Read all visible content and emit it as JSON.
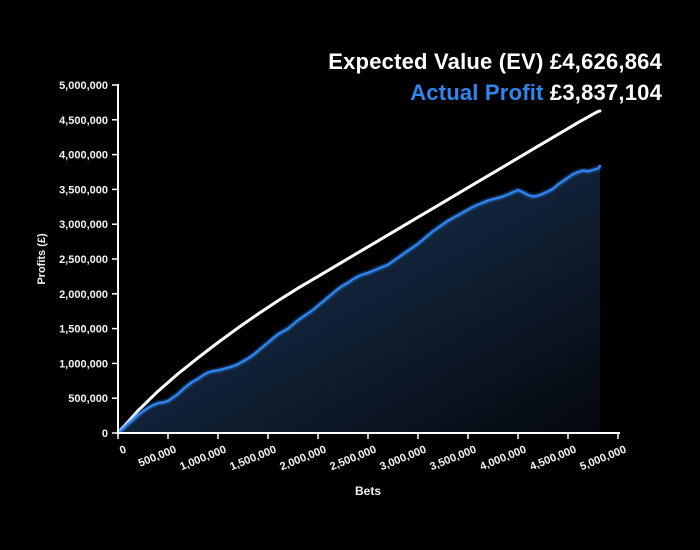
{
  "header": {
    "ev_label": "Expected Value (EV)",
    "ev_value": "£4,626,864",
    "actual_label": "Actual Profit",
    "actual_value": "£3,837,104"
  },
  "axes": {
    "x_label": "Bets",
    "y_label": "Profits (£)",
    "x_tick_values": [
      0,
      500000,
      1000000,
      1500000,
      2000000,
      2500000,
      3000000,
      3500000,
      4000000,
      4500000,
      5000000
    ],
    "x_tick_labels": [
      "0",
      "500,000",
      "1,000,000",
      "1,500,000",
      "2,000,000",
      "2,500,000",
      "3,000,000",
      "3,500,000",
      "4,000,000",
      "4,500,000",
      "5,000,000"
    ],
    "y_tick_values": [
      0,
      500000,
      1000000,
      1500000,
      2000000,
      2500000,
      3000000,
      3500000,
      4000000,
      4500000,
      5000000
    ],
    "y_tick_labels": [
      "0",
      "500,000",
      "1,000,000",
      "1,500,000",
      "2,000,000",
      "2,500,000",
      "3,000,000",
      "3,500,000",
      "4,000,000",
      "4,500,000",
      "5,000,000"
    ]
  },
  "colors": {
    "background": "#000000",
    "axis": "#ffffff",
    "ev_line": "#ffffff",
    "actual_line": "#2e86f0",
    "actual_glow": "rgba(46,134,240,0.28)",
    "fill_top": "#2d4f78",
    "fill_mid": "#12243a",
    "fill_bottom": "#05080e",
    "title_white": "#ffffff",
    "title_blue": "#2e86f0"
  },
  "chart_data": {
    "type": "line",
    "title": "Expected Value (EV) £4,626,864 | Actual Profit £3,837,104",
    "xlabel": "Bets",
    "ylabel": "Profits (£)",
    "xlim": [
      0,
      5000000
    ],
    "ylim": [
      0,
      5000000
    ],
    "grid": false,
    "legend_position": "top-right",
    "x_start": 0,
    "series": [
      {
        "name": "Expected Value (EV)",
        "color": "#ffffff",
        "final_value": 4626864,
        "x_step": 200000,
        "final": [
          4820000,
          4626864
        ],
        "y": [
          0,
          320000,
          600000,
          850000,
          1080000,
          1300000,
          1510000,
          1710000,
          1900000,
          2080000,
          2250000,
          2420000,
          2590000,
          2760000,
          2930000,
          3100000,
          3270000,
          3440000,
          3610000,
          3780000,
          3950000,
          4120000,
          4290000,
          4460000,
          4620000
        ]
      },
      {
        "name": "Actual Profit",
        "color": "#2e86f0",
        "final_value": 3837104,
        "area_fill": true,
        "x_step": 50000,
        "final": [
          4820000,
          3837104
        ],
        "y": [
          0,
          60000,
          130000,
          190000,
          260000,
          310000,
          360000,
          400000,
          430000,
          440000,
          460000,
          510000,
          560000,
          630000,
          690000,
          740000,
          780000,
          830000,
          870000,
          890000,
          900000,
          920000,
          940000,
          960000,
          990000,
          1030000,
          1070000,
          1120000,
          1180000,
          1240000,
          1300000,
          1360000,
          1420000,
          1460000,
          1500000,
          1560000,
          1620000,
          1670000,
          1720000,
          1770000,
          1830000,
          1890000,
          1950000,
          2010000,
          2070000,
          2120000,
          2160000,
          2210000,
          2250000,
          2280000,
          2300000,
          2330000,
          2360000,
          2390000,
          2420000,
          2470000,
          2520000,
          2570000,
          2620000,
          2670000,
          2720000,
          2780000,
          2840000,
          2900000,
          2950000,
          3000000,
          3050000,
          3090000,
          3130000,
          3170000,
          3210000,
          3250000,
          3280000,
          3310000,
          3340000,
          3360000,
          3380000,
          3400000,
          3430000,
          3460000,
          3490000,
          3460000,
          3420000,
          3400000,
          3410000,
          3440000,
          3470000,
          3510000,
          3570000,
          3620000,
          3670000,
          3720000,
          3750000,
          3770000,
          3760000,
          3780000,
          3800000
        ]
      }
    ]
  }
}
